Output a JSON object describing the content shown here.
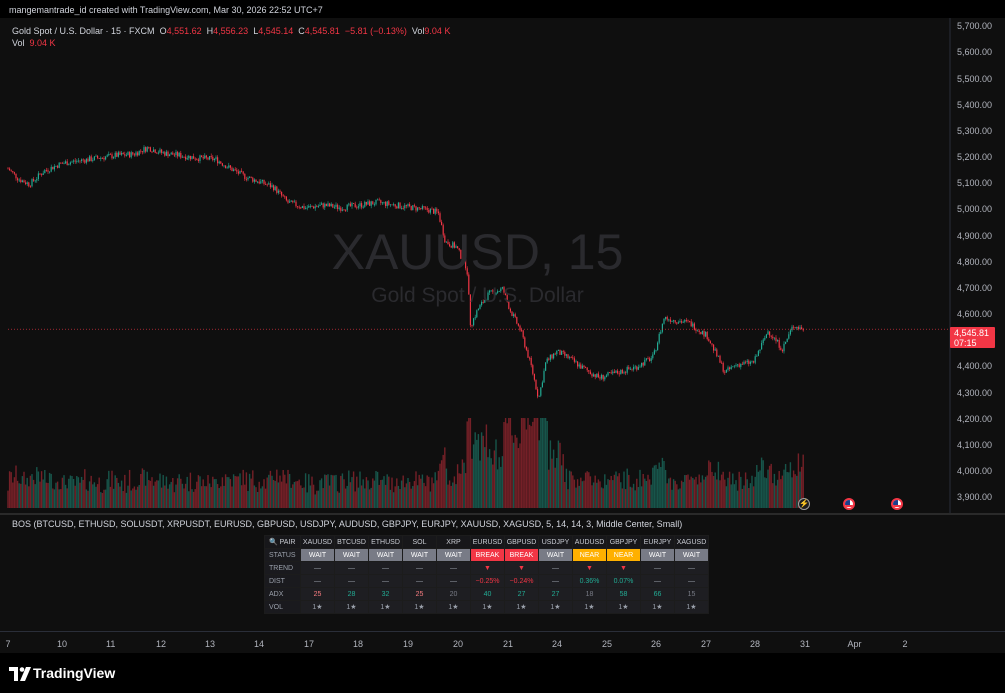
{
  "header": {
    "snapshot_line": "mangemantrade_id created with TradingView.com, Mar 30, 2026 22:52 UTC+7"
  },
  "legend": {
    "symbol": "Gold Spot / U.S. Dollar · 15 · FXCM",
    "open_label": "O",
    "open": "4,551.62",
    "high_label": "H",
    "high": "4,556.23",
    "low_label": "L",
    "low": "4,545.14",
    "close_label": "C",
    "close": "4,545.81",
    "change": "−5.81 (−0.13%)",
    "vol_label": "Vol",
    "vol": "9.04 K",
    "vol_row_label": "Vol",
    "vol_row_value": "9.04 K"
  },
  "watermark": {
    "title": "XAUUSD, 15",
    "subtitle": "Gold Spot / U.S. Dollar"
  },
  "price_axis": {
    "labels": [
      "5,700.00",
      "5,600.00",
      "5,500.00",
      "5,400.00",
      "5,300.00",
      "5,200.00",
      "5,100.00",
      "5,000.00",
      "4,900.00",
      "4,800.00",
      "4,700.00",
      "4,600.00",
      "4,500.00",
      "4,400.00",
      "4,300.00",
      "4,200.00",
      "4,100.00",
      "4,000.00",
      "3,900.00"
    ],
    "last_price": "4,545.81",
    "countdown": "07:15"
  },
  "colors": {
    "up": "#22ab94",
    "down": "#f23645",
    "wait": "#787b86",
    "near": "#ffb000"
  },
  "chart_data": {
    "type": "candlestick",
    "symbol": "XAUUSD",
    "timeframe": "15",
    "ylim": [
      3870,
      5720
    ],
    "last_price": 4545.81,
    "path": [
      {
        "d": 7.0,
        "p": 5160
      },
      {
        "d": 7.3,
        "p": 5120
      },
      {
        "d": 7.6,
        "p": 5100
      },
      {
        "d": 8.0,
        "p": 5150
      },
      {
        "d": 8.5,
        "p": 5180
      },
      {
        "d": 9.0,
        "p": 5190
      },
      {
        "d": 9.5,
        "p": 5200
      },
      {
        "d": 10.0,
        "p": 5210
      },
      {
        "d": 10.5,
        "p": 5215
      },
      {
        "d": 10.9,
        "p": 5240
      },
      {
        "d": 11.3,
        "p": 5220
      },
      {
        "d": 11.8,
        "p": 5210
      },
      {
        "d": 12.3,
        "p": 5200
      },
      {
        "d": 12.8,
        "p": 5195
      },
      {
        "d": 13.2,
        "p": 5160
      },
      {
        "d": 13.6,
        "p": 5130
      },
      {
        "d": 14.0,
        "p": 5110
      },
      {
        "d": 14.4,
        "p": 5090
      },
      {
        "d": 14.8,
        "p": 5030
      },
      {
        "d": 15.3,
        "p": 5010
      },
      {
        "d": 15.8,
        "p": 5020
      },
      {
        "d": 16.3,
        "p": 5010
      },
      {
        "d": 16.8,
        "p": 5020
      },
      {
        "d": 17.3,
        "p": 5030
      },
      {
        "d": 17.8,
        "p": 5020
      },
      {
        "d": 18.3,
        "p": 5010
      },
      {
        "d": 18.8,
        "p": 5000
      },
      {
        "d": 19.0,
        "p": 4990
      },
      {
        "d": 19.2,
        "p": 4880
      },
      {
        "d": 19.5,
        "p": 4860
      },
      {
        "d": 19.8,
        "p": 4780
      },
      {
        "d": 19.9,
        "p": 4560
      },
      {
        "d": 20.1,
        "p": 4620
      },
      {
        "d": 20.4,
        "p": 4680
      },
      {
        "d": 20.8,
        "p": 4700
      },
      {
        "d": 21.0,
        "p": 4620
      },
      {
        "d": 21.3,
        "p": 4540
      },
      {
        "d": 21.6,
        "p": 4400
      },
      {
        "d": 21.8,
        "p": 4280
      },
      {
        "d": 22.0,
        "p": 4420
      },
      {
        "d": 22.3,
        "p": 4460
      },
      {
        "d": 22.6,
        "p": 4440
      },
      {
        "d": 23.0,
        "p": 4400
      },
      {
        "d": 23.5,
        "p": 4360
      },
      {
        "d": 24.0,
        "p": 4380
      },
      {
        "d": 24.5,
        "p": 4400
      },
      {
        "d": 25.0,
        "p": 4440
      },
      {
        "d": 25.3,
        "p": 4590
      },
      {
        "d": 25.6,
        "p": 4580
      },
      {
        "d": 26.0,
        "p": 4570
      },
      {
        "d": 26.5,
        "p": 4520
      },
      {
        "d": 27.0,
        "p": 4380
      },
      {
        "d": 27.3,
        "p": 4410
      },
      {
        "d": 27.8,
        "p": 4420
      },
      {
        "d": 28.2,
        "p": 4540
      },
      {
        "d": 28.6,
        "p": 4470
      },
      {
        "d": 28.9,
        "p": 4560
      },
      {
        "d": 29.2,
        "p": 4545
      }
    ],
    "volume_ylim": [
      0,
      11000
    ],
    "annotations": [],
    "x_ticks": [
      "7",
      "10",
      "11",
      "12",
      "13",
      "14",
      "17",
      "18",
      "19",
      "20",
      "21",
      "24",
      "25",
      "26",
      "27",
      "28",
      "31",
      "Apr",
      "2"
    ]
  },
  "indicator": {
    "title": "BOS (BTCUSD, ETHUSD, SOLUSDT, XRPUSDT, EURUSD, GBPUSD, USDJPY, AUDUSD, GBPJPY, EURJPY, XAUUSD, XAGUSD, 5, 14, 14, 3, Middle Center, Small)",
    "table": {
      "pair_header": "🔍 PAIR",
      "pairs": [
        "XAUUSD",
        "BTCUSD",
        "ETHUSD",
        "SOL",
        "XRP",
        "EURUSD",
        "GBPUSD",
        "USDJPY",
        "AUDUSD",
        "GBPJPY",
        "EURJPY",
        "XAGUSD"
      ],
      "status_label": "STATUS",
      "status": [
        "WAIT",
        "WAIT",
        "WAIT",
        "WAIT",
        "WAIT",
        "BREAK",
        "BREAK",
        "WAIT",
        "NEAR",
        "NEAR",
        "WAIT",
        "WAIT"
      ],
      "trend_label": "TREND",
      "trend": [
        "—",
        "—",
        "—",
        "—",
        "—",
        "▼",
        "▼",
        "—",
        "▼",
        "▼",
        "—",
        "—"
      ],
      "dist_label": "DIST",
      "dist": [
        "—",
        "—",
        "—",
        "—",
        "—",
        "−0.25%",
        "−0.24%",
        "—",
        "0.36%",
        "0.07%",
        "—",
        "—"
      ],
      "adx_label": "ADX",
      "adx": [
        "25",
        "28",
        "32",
        "25",
        "20",
        "40",
        "27",
        "27",
        "18",
        "58",
        "66",
        "15"
      ],
      "vol_label": "VOL",
      "vol": [
        "1★",
        "1★",
        "1★",
        "1★",
        "1★",
        "1★",
        "1★",
        "1★",
        "1★",
        "1★",
        "1★",
        "1★"
      ]
    }
  },
  "time_axis": {
    "labels": [
      "7",
      "10",
      "11",
      "12",
      "13",
      "14",
      "17",
      "18",
      "19",
      "20",
      "21",
      "24",
      "25",
      "26",
      "27",
      "28",
      "31",
      "Apr",
      "2"
    ]
  },
  "events": {
    "flash_icon": "lightning-icon",
    "flag_icon": "us-flag-icon"
  },
  "footer": {
    "brand": "TradingView",
    "logo_icon": "tradingview-logo-icon"
  }
}
